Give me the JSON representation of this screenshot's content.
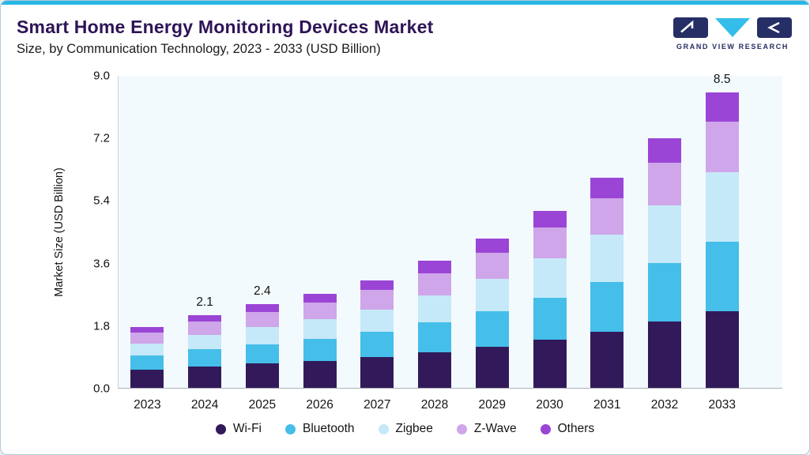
{
  "header": {
    "title": "Smart Home Energy Monitoring Devices Market",
    "subtitle": "Size, by Communication Technology, 2023 - 2033 (USD Billion)",
    "logo_text": "GRAND VIEW RESEARCH"
  },
  "chart_data": {
    "type": "bar",
    "stacked": true,
    "title": "Smart Home Energy Monitoring Devices Market Size, by Communication Technology, 2023 - 2033 (USD Billion)",
    "xlabel": "",
    "ylabel": "Market Size (USD Billion)",
    "ylim": [
      0,
      9.0
    ],
    "yticks": [
      0.0,
      1.8,
      3.6,
      5.4,
      7.2,
      9.0
    ],
    "grid": false,
    "legend_position": "bottom",
    "categories": [
      "2023",
      "2024",
      "2025",
      "2026",
      "2027",
      "2028",
      "2029",
      "2030",
      "2031",
      "2032",
      "2033"
    ],
    "series": [
      {
        "name": "Wi-Fi",
        "color": "#321A5A",
        "values": [
          0.52,
          0.62,
          0.7,
          0.78,
          0.88,
          1.02,
          1.19,
          1.39,
          1.62,
          1.9,
          2.21
        ]
      },
      {
        "name": "Bluetooth",
        "color": "#45BEE9",
        "values": [
          0.41,
          0.49,
          0.56,
          0.63,
          0.73,
          0.86,
          1.01,
          1.2,
          1.42,
          1.69,
          2.0
        ]
      },
      {
        "name": "Zigbee",
        "color": "#C5E9F8",
        "values": [
          0.34,
          0.42,
          0.49,
          0.56,
          0.65,
          0.78,
          0.94,
          1.14,
          1.37,
          1.66,
          2.0
        ]
      },
      {
        "name": "Z-Wave",
        "color": "#CFA6E9",
        "values": [
          0.32,
          0.38,
          0.43,
          0.48,
          0.55,
          0.64,
          0.75,
          0.88,
          1.04,
          1.23,
          1.44
        ]
      },
      {
        "name": "Others",
        "color": "#9B45D6",
        "values": [
          0.16,
          0.19,
          0.22,
          0.25,
          0.29,
          0.35,
          0.41,
          0.49,
          0.59,
          0.71,
          0.85
        ]
      }
    ],
    "bar_labels": {
      "2024": "2.1",
      "2025": "2.4",
      "2033": "8.5"
    }
  }
}
